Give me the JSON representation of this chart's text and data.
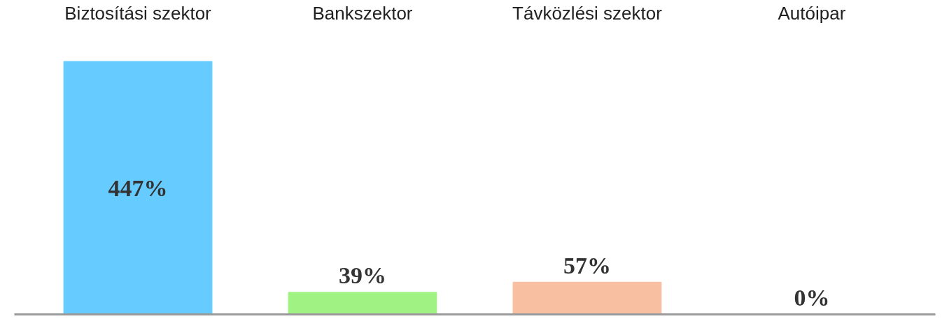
{
  "chart_data": {
    "type": "bar",
    "categories": [
      "Biztosítási szektor",
      "Bankszektor",
      "Távközlési szektor",
      "Autóipar"
    ],
    "values": [
      447,
      39,
      57,
      0
    ],
    "colors": [
      "#66ccff",
      "#a0f383",
      "#f8bfa0",
      "#6e6e6e"
    ],
    "value_labels": [
      "447%",
      "39%",
      "57%",
      "0%"
    ]
  }
}
